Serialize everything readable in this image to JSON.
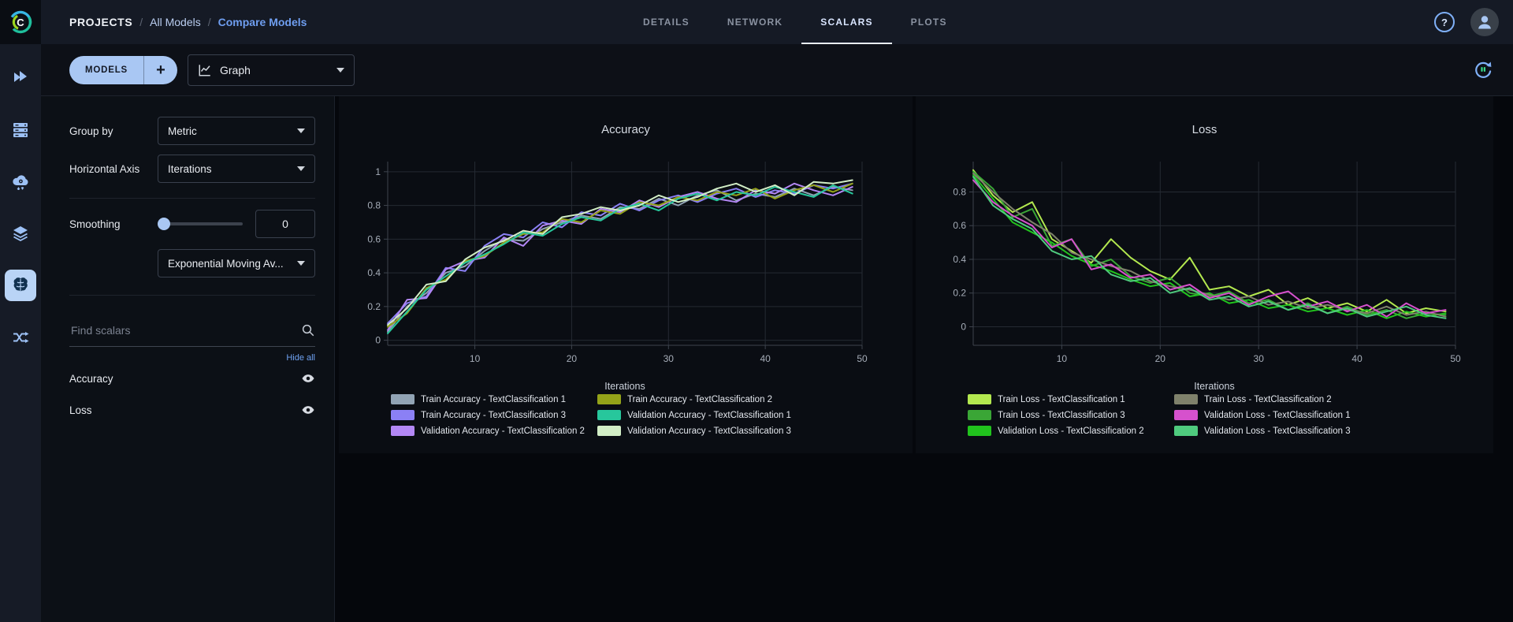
{
  "app": {
    "accent": "#a9c7f3",
    "link_blue": "#6fa2f2",
    "active_tab_color": "#d9e5ff"
  },
  "header": {
    "breadcrumb": [
      {
        "label": "PROJECTS"
      },
      {
        "label": "All Models"
      },
      {
        "label": "Compare Models"
      }
    ],
    "breadcrumb_separator": "/",
    "tabs": [
      {
        "label": "DETAILS",
        "active": false
      },
      {
        "label": "NETWORK",
        "active": false
      },
      {
        "label": "SCALARS",
        "active": true
      },
      {
        "label": "PLOTS",
        "active": false
      }
    ],
    "help_icon_glyph": "?"
  },
  "toolbar": {
    "models_button_label": "MODELS",
    "add_model_label": "+",
    "view_selector_value": "Graph"
  },
  "sidebar": {
    "items": [
      {
        "name": "getting-started"
      },
      {
        "name": "workers-queues"
      },
      {
        "name": "cloud-autoscaler"
      },
      {
        "name": "datasets"
      },
      {
        "name": "models",
        "active": true
      },
      {
        "name": "pipelines"
      }
    ]
  },
  "controls": {
    "group_by_label": "Group by",
    "group_by_value": "Metric",
    "horizontal_axis_label": "Horizontal Axis",
    "horizontal_axis_value": "Iterations",
    "smoothing_label": "Smoothing",
    "smoothing_value": "0",
    "smoothing_type_value": "Exponential Moving Av...",
    "search_placeholder": "Find scalars",
    "hide_all_label": "Hide all",
    "scalars": [
      {
        "label": "Accuracy",
        "visible": true
      },
      {
        "label": "Loss",
        "visible": true
      }
    ]
  },
  "chart_data": [
    {
      "type": "line",
      "title": "Accuracy",
      "xlabel": "Iterations",
      "ylabel": "",
      "grid": true,
      "legend_position": "bottom",
      "xlim": [
        1,
        50
      ],
      "xticks": [
        10,
        20,
        30,
        40,
        50
      ],
      "ylim": [
        -0.03,
        1.06
      ],
      "yticks": [
        0,
        0.2,
        0.4,
        0.6,
        0.8,
        1
      ],
      "x": [
        1,
        3,
        5,
        7,
        9,
        11,
        13,
        15,
        17,
        19,
        21,
        23,
        25,
        27,
        29,
        31,
        33,
        35,
        37,
        39,
        41,
        43,
        45,
        47,
        49
      ],
      "series": [
        {
          "name": "Train Accuracy - TextClassification 1",
          "color": "#91a3b4",
          "values": [
            0.05,
            0.2,
            0.28,
            0.4,
            0.44,
            0.53,
            0.6,
            0.59,
            0.66,
            0.7,
            0.74,
            0.72,
            0.79,
            0.78,
            0.84,
            0.8,
            0.86,
            0.89,
            0.83,
            0.87,
            0.85,
            0.9,
            0.86,
            0.91,
            0.89
          ]
        },
        {
          "name": "Train Accuracy - TextClassification 3",
          "color": "#8b80f5",
          "values": [
            0.1,
            0.22,
            0.26,
            0.43,
            0.41,
            0.56,
            0.63,
            0.61,
            0.7,
            0.67,
            0.76,
            0.74,
            0.81,
            0.77,
            0.83,
            0.86,
            0.82,
            0.87,
            0.9,
            0.85,
            0.89,
            0.87,
            0.92,
            0.9,
            0.93
          ]
        },
        {
          "name": "Validation Accuracy - TextClassification 2",
          "color": "#b387f5",
          "values": [
            0.06,
            0.24,
            0.25,
            0.42,
            0.47,
            0.49,
            0.61,
            0.56,
            0.68,
            0.71,
            0.69,
            0.78,
            0.76,
            0.83,
            0.79,
            0.85,
            0.88,
            0.84,
            0.82,
            0.89,
            0.87,
            0.93,
            0.89,
            0.86,
            0.91
          ]
        },
        {
          "name": "Train Accuracy - TextClassification 2",
          "color": "#94a319",
          "values": [
            0.08,
            0.16,
            0.31,
            0.36,
            0.47,
            0.5,
            0.58,
            0.63,
            0.64,
            0.72,
            0.7,
            0.77,
            0.75,
            0.82,
            0.8,
            0.85,
            0.83,
            0.88,
            0.86,
            0.9,
            0.84,
            0.89,
            0.92,
            0.88,
            0.93
          ]
        },
        {
          "name": "Validation Accuracy - TextClassification 1",
          "color": "#27c79c",
          "values": [
            0.04,
            0.17,
            0.3,
            0.38,
            0.46,
            0.51,
            0.57,
            0.64,
            0.62,
            0.69,
            0.73,
            0.71,
            0.78,
            0.81,
            0.77,
            0.84,
            0.87,
            0.83,
            0.88,
            0.86,
            0.91,
            0.88,
            0.85,
            0.92,
            0.87
          ]
        },
        {
          "name": "Validation Accuracy - TextClassification 3",
          "color": "#d2eec6",
          "values": [
            0.09,
            0.19,
            0.33,
            0.35,
            0.48,
            0.55,
            0.59,
            0.65,
            0.63,
            0.73,
            0.75,
            0.79,
            0.77,
            0.8,
            0.86,
            0.82,
            0.85,
            0.9,
            0.93,
            0.88,
            0.92,
            0.86,
            0.94,
            0.93,
            0.95
          ]
        }
      ]
    },
    {
      "type": "line",
      "title": "Loss",
      "xlabel": "Iterations",
      "ylabel": "",
      "grid": true,
      "legend_position": "bottom",
      "xlim": [
        1,
        50
      ],
      "xticks": [
        10,
        20,
        30,
        40,
        50
      ],
      "ylim": [
        -0.11,
        0.98
      ],
      "yticks": [
        0,
        0.2,
        0.4,
        0.6,
        0.8
      ],
      "x": [
        1,
        3,
        5,
        7,
        9,
        11,
        13,
        15,
        17,
        19,
        21,
        23,
        25,
        27,
        29,
        31,
        33,
        35,
        37,
        39,
        41,
        43,
        45,
        47,
        49
      ],
      "series": [
        {
          "name": "Train Loss - TextClassification 1",
          "color": "#b3e84f",
          "values": [
            0.93,
            0.78,
            0.68,
            0.74,
            0.52,
            0.45,
            0.38,
            0.52,
            0.41,
            0.33,
            0.28,
            0.41,
            0.22,
            0.24,
            0.18,
            0.22,
            0.13,
            0.17,
            0.11,
            0.14,
            0.09,
            0.16,
            0.08,
            0.11,
            0.09
          ]
        },
        {
          "name": "Train Loss - TextClassification 3",
          "color": "#3aa636",
          "values": [
            0.92,
            0.82,
            0.65,
            0.7,
            0.48,
            0.52,
            0.36,
            0.4,
            0.3,
            0.26,
            0.29,
            0.2,
            0.18,
            0.21,
            0.14,
            0.16,
            0.1,
            0.14,
            0.08,
            0.12,
            0.07,
            0.1,
            0.05,
            0.08,
            0.07
          ]
        },
        {
          "name": "Validation Loss - TextClassification 2",
          "color": "#21c31d",
          "values": [
            0.9,
            0.76,
            0.62,
            0.56,
            0.5,
            0.42,
            0.37,
            0.33,
            0.28,
            0.24,
            0.26,
            0.18,
            0.2,
            0.14,
            0.16,
            0.11,
            0.13,
            0.09,
            0.11,
            0.07,
            0.1,
            0.05,
            0.09,
            0.06,
            0.08
          ]
        },
        {
          "name": "Train Loss - TextClassification 2",
          "color": "#7f816b",
          "values": [
            0.91,
            0.8,
            0.7,
            0.62,
            0.55,
            0.44,
            0.4,
            0.36,
            0.33,
            0.27,
            0.24,
            0.22,
            0.19,
            0.16,
            0.18,
            0.13,
            0.15,
            0.11,
            0.13,
            0.1,
            0.08,
            0.12,
            0.07,
            0.09,
            0.06
          ]
        },
        {
          "name": "Validation Loss - TextClassification 1",
          "color": "#d651cd",
          "values": [
            0.87,
            0.74,
            0.66,
            0.6,
            0.47,
            0.52,
            0.34,
            0.37,
            0.29,
            0.31,
            0.22,
            0.25,
            0.17,
            0.2,
            0.13,
            0.18,
            0.21,
            0.12,
            0.15,
            0.09,
            0.13,
            0.06,
            0.14,
            0.08,
            0.1
          ]
        },
        {
          "name": "Validation Loss - TextClassification 3",
          "color": "#4fcb7e",
          "values": [
            0.89,
            0.72,
            0.64,
            0.58,
            0.45,
            0.4,
            0.42,
            0.31,
            0.27,
            0.29,
            0.2,
            0.23,
            0.16,
            0.18,
            0.12,
            0.15,
            0.1,
            0.13,
            0.08,
            0.11,
            0.06,
            0.09,
            0.12,
            0.07,
            0.05
          ]
        }
      ]
    }
  ]
}
